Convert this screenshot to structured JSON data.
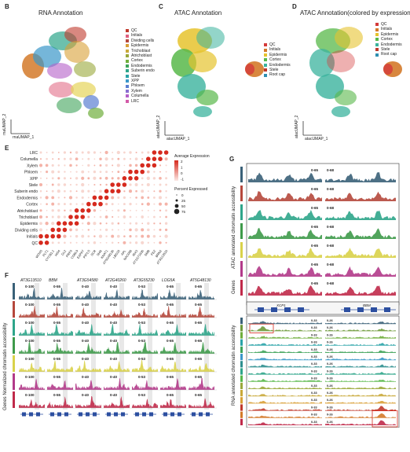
{
  "panels": {
    "B": {
      "letter": "B",
      "title": "RNA Annotation",
      "xlabel": "rnaUMAP_1",
      "ylabel": "rnaUMAP_2"
    },
    "C": {
      "letter": "C",
      "title": "ATAC Annotation",
      "xlabel": "atacUMAP_1",
      "ylabel": "atacUMAP_2"
    },
    "D": {
      "letter": "D",
      "title": "ATAC Annotation(colored by expression)",
      "xlabel": "atacUMAP_1",
      "ylabel": "atacUMAP_2"
    },
    "E": {
      "letter": "E"
    },
    "F": {
      "letter": "F",
      "ylabel": "Genes Normalized chromatin accessibility"
    },
    "G": {
      "letter": "G",
      "atac_label": "ATAC annotated chromatin accessibility",
      "genes_label": "Genes",
      "rna_label": "RNA annotated chromatin accessibility"
    }
  },
  "legends": {
    "rna": [
      {
        "name": "QC",
        "color": "#c0392b"
      },
      {
        "name": "Initials",
        "color": "#e0607e"
      },
      {
        "name": "Dividing cells",
        "color": "#b5483c"
      },
      {
        "name": "Epidermis",
        "color": "#d9a036"
      },
      {
        "name": "Trichoblast",
        "color": "#c9a93a"
      },
      {
        "name": "Atrichoblast",
        "color": "#9aa83a"
      },
      {
        "name": "Cortex",
        "color": "#6fae3c"
      },
      {
        "name": "Endodermis",
        "color": "#3fa35a"
      },
      {
        "name": "Suberin endo",
        "color": "#2ea58a"
      },
      {
        "name": "Stele",
        "color": "#2aa3a8"
      },
      {
        "name": "XPP",
        "color": "#3a97c9"
      },
      {
        "name": "Phloem",
        "color": "#5b7fd1"
      },
      {
        "name": "Xylem",
        "color": "#8a6fd0"
      },
      {
        "name": "Columella",
        "color": "#b45fc8"
      },
      {
        "name": "LRC",
        "color": "#d35aa8"
      }
    ],
    "atac": [
      {
        "name": "QC",
        "color": "#d43a3a"
      },
      {
        "name": "Initials",
        "color": "#d47a2a"
      },
      {
        "name": "Epidermis",
        "color": "#e6c32e"
      },
      {
        "name": "Cortex",
        "color": "#58b84a"
      },
      {
        "name": "Endodermis",
        "color": "#3bb39d"
      },
      {
        "name": "Stele",
        "color": "#c0392b"
      },
      {
        "name": "Root cap",
        "color": "#2e8fb0"
      }
    ],
    "atac_expr": [
      {
        "name": "QC",
        "color": "#d43a3a"
      },
      {
        "name": "Initials",
        "color": "#d47a2a"
      },
      {
        "name": "Epidermis",
        "color": "#e6c32e"
      },
      {
        "name": "Cortex",
        "color": "#58b84a"
      },
      {
        "name": "Endodermis",
        "color": "#3bb39d"
      },
      {
        "name": "Stele",
        "color": "#c0392b"
      },
      {
        "name": "Root cap",
        "color": "#2e8fb0"
      }
    ]
  },
  "dotplot": {
    "rows": [
      "LRC",
      "Columella",
      "Xylem",
      "Phloem",
      "XPP",
      "Stele",
      "Suberin endo",
      "Endodermis",
      "Cortex",
      "Atrichoblast",
      "Trichoblast",
      "Epidermis",
      "Dividing cells",
      "Initials",
      "QC"
    ],
    "genes": [
      "WOX5",
      "PLT1",
      "CYCB1;1",
      "HIS4",
      "GL2",
      "PRP3",
      "COBL9",
      "EXPA7",
      "PIP1;5",
      "SCR",
      "SHR",
      "KNAT1",
      "AT5G48130",
      "LBD16",
      "APL",
      "NAC086",
      "IRX3",
      "AT1G71930",
      "SMB",
      "FEZ",
      "BRN2",
      "AT3G13510"
    ],
    "legend_expr_title": "Average Expression",
    "legend_expr_ticks": [
      "2",
      "1",
      "0",
      "-1"
    ],
    "legend_pct_title": "Percent Expressed",
    "legend_pct_ticks": [
      "0",
      "25",
      "50",
      "75"
    ]
  },
  "panelF": {
    "genes": [
      "AT3G13510",
      "BBM",
      "AT3G54580",
      "AT2G40260",
      "AT3G55230",
      "LOG5A",
      "AT5G48130"
    ],
    "ranges": [
      "0-100",
      "0-55",
      "0-40",
      "0-40",
      "0-53",
      "0-65",
      "0-65"
    ],
    "track_colors": [
      "#3a6178",
      "#b5483c",
      "#2ea58a",
      "#3e9a4a",
      "#d9d24a",
      "#b23a8a",
      "#c02a4a"
    ]
  },
  "panelG": {
    "genes": [
      "XCP1",
      "BBM"
    ],
    "atac_ranges": [
      "0-65",
      "0-68"
    ],
    "rna_ranges": [
      "0-33",
      "0-26"
    ],
    "atac_colors": [
      "#3a6178",
      "#b5483c",
      "#2ea58a",
      "#3e9a4a",
      "#d9d24a",
      "#b23a8a",
      "#c02a4a"
    ],
    "rna_colors": [
      "#3a6178",
      "#6e9a3a",
      "#6fae3c",
      "#2aa3a8",
      "#3fa35a",
      "#3a97c9",
      "#2e8f8f",
      "#2ea58a",
      "#58b84a",
      "#9aa83a",
      "#c9a93a",
      "#d9a036",
      "#c0392b",
      "#d47a2a",
      "#c02a4a"
    ]
  }
}
